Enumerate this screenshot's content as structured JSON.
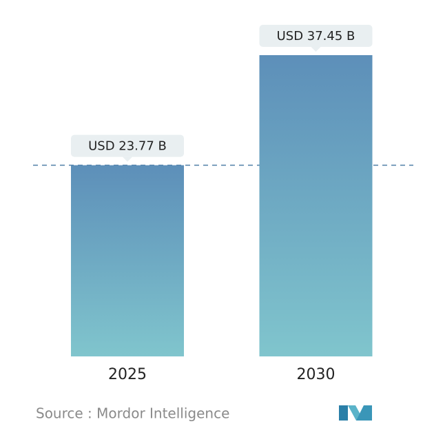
{
  "chart_data": {
    "type": "bar",
    "categories": [
      "2025",
      "2030"
    ],
    "values": [
      23.77,
      37.45
    ],
    "value_labels": [
      "USD 23.77 B",
      "USD 37.45 B"
    ],
    "source": "Source :  Mordor Intelligence"
  }
}
